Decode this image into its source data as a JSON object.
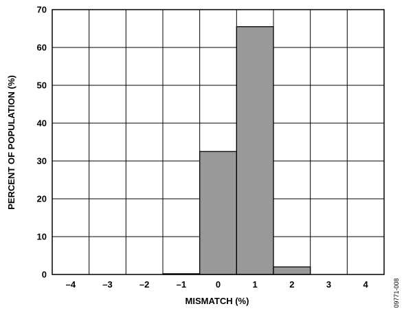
{
  "chart_data": {
    "type": "bar",
    "title": "",
    "xlabel": "MISMATCH (%)",
    "ylabel": "PERCENT OF POPULATION (%)",
    "categories": [
      "–4",
      "–3",
      "–2",
      "–1",
      "0",
      "1",
      "2",
      "3",
      "4"
    ],
    "x": [
      -4,
      -3,
      -2,
      -1,
      0,
      1,
      2,
      3,
      4
    ],
    "values": [
      0,
      0,
      0,
      0.2,
      32.5,
      65.5,
      2,
      0,
      0
    ],
    "ylim": [
      0,
      70
    ],
    "yticks": [
      "0",
      "10",
      "20",
      "30",
      "40",
      "50",
      "60",
      "70"
    ],
    "grid": true,
    "bar_color": "#999999",
    "figure_id": "09771-008"
  }
}
